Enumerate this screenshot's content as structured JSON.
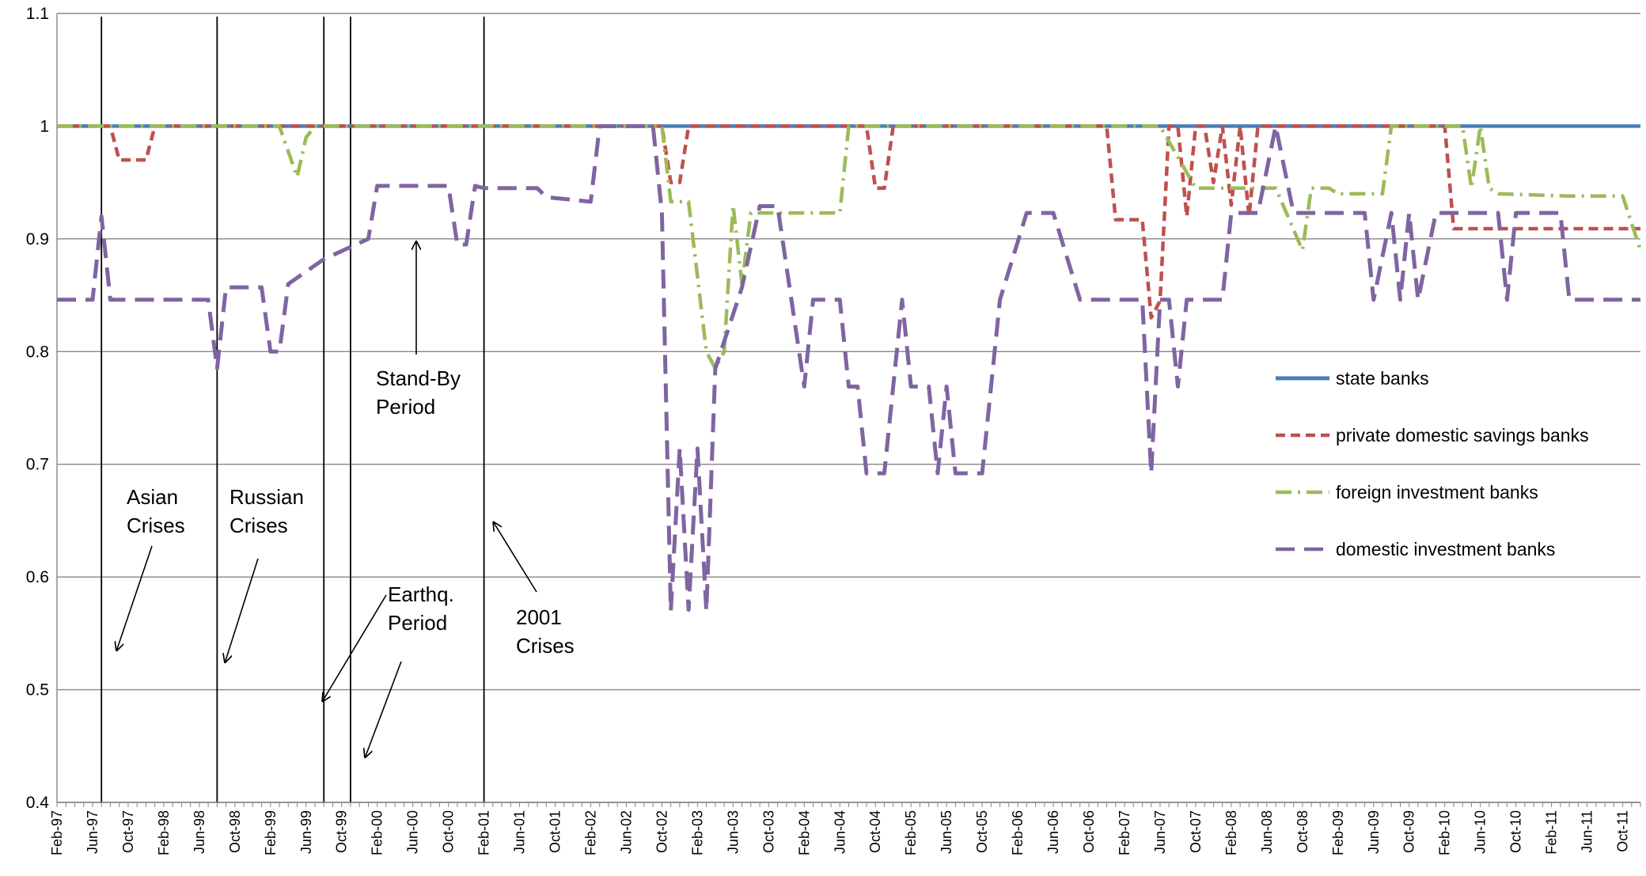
{
  "chart_data": {
    "type": "line",
    "title": "",
    "xlabel": "",
    "ylabel": "",
    "x_range": [
      "1997-02",
      "2011-12"
    ],
    "ylim": [
      0.4,
      1.1
    ],
    "y_ticks": [
      0.4,
      0.5,
      0.6,
      0.7,
      0.8,
      0.9,
      1,
      1.1
    ],
    "y_tick_labels": [
      "0.4",
      "0.5",
      "0.6",
      "0.7",
      "0.8",
      "0.9",
      "1",
      "1.1"
    ],
    "x_tick_labels": [
      "Feb-97",
      "Jun-97",
      "Oct-97",
      "Feb-98",
      "Jun-98",
      "Oct-98",
      "Feb-99",
      "Jun-99",
      "Oct-99",
      "Feb-00",
      "Jun-00",
      "Oct-00",
      "Feb-01",
      "Jun-01",
      "Oct-01",
      "Feb-02",
      "Jun-02",
      "Oct-02",
      "Feb-03",
      "Jun-03",
      "Oct-03",
      "Feb-04",
      "Jun-04",
      "Oct-04",
      "Feb-05",
      "Jun-05",
      "Oct-05",
      "Feb-06",
      "Jun-06",
      "Oct-06",
      "Feb-07",
      "Jun-07",
      "Oct-07",
      "Feb-08",
      "Jun-08",
      "Oct-08",
      "Feb-09",
      "Jun-09",
      "Oct-09",
      "Feb-10",
      "Jun-10",
      "Oct-10",
      "Feb-11",
      "Jun-11",
      "Oct-11"
    ],
    "grid": "horizontal",
    "legend_position": "right",
    "series": [
      {
        "name": "state banks",
        "color": "#4a7ebb",
        "style": "solid",
        "points": [
          [
            "1997-02",
            1.0
          ],
          [
            "2011-12",
            1.0
          ]
        ]
      },
      {
        "name": "private domestic savings banks",
        "color": "#c0504d",
        "style": "dash",
        "points": [
          [
            "1997-02",
            1.0
          ],
          [
            "1997-08",
            1.0
          ],
          [
            "1997-09",
            0.97
          ],
          [
            "1997-12",
            0.97
          ],
          [
            "1998-01",
            1.0
          ],
          [
            "2002-10",
            1.0
          ],
          [
            "2002-11",
            0.95
          ],
          [
            "2002-12",
            0.95
          ],
          [
            "2003-01",
            1.0
          ],
          [
            "2004-09",
            1.0
          ],
          [
            "2004-10",
            0.945
          ],
          [
            "2004-11",
            0.945
          ],
          [
            "2004-12",
            1.0
          ],
          [
            "2006-12",
            1.0
          ],
          [
            "2007-01",
            0.917
          ],
          [
            "2007-04",
            0.917
          ],
          [
            "2007-05",
            0.83
          ],
          [
            "2007-06",
            0.845
          ],
          [
            "2007-07",
            1.0
          ],
          [
            "2007-08",
            1.0
          ],
          [
            "2007-09",
            0.92
          ],
          [
            "2007-10",
            1.0
          ],
          [
            "2007-11",
            1.0
          ],
          [
            "2007-12",
            0.95
          ],
          [
            "2008-01",
            1.0
          ],
          [
            "2008-02",
            0.93
          ],
          [
            "2008-03",
            1.0
          ],
          [
            "2008-04",
            0.92
          ],
          [
            "2008-05",
            1.0
          ],
          [
            "2010-02",
            1.0
          ],
          [
            "2010-03",
            0.909
          ],
          [
            "2011-12",
            0.909
          ]
        ]
      },
      {
        "name": "foreign investment banks",
        "color": "#9bbb59",
        "style": "dash-dot",
        "points": [
          [
            "1997-02",
            1.0
          ],
          [
            "1999-03",
            1.0
          ],
          [
            "1999-05",
            0.955
          ],
          [
            "1999-06",
            0.99
          ],
          [
            "1999-07",
            1.0
          ],
          [
            "2002-10",
            1.0
          ],
          [
            "2002-11",
            0.933
          ],
          [
            "2003-01",
            0.933
          ],
          [
            "2003-03",
            0.8
          ],
          [
            "2003-04",
            0.785
          ],
          [
            "2003-05",
            0.8
          ],
          [
            "2003-06",
            0.93
          ],
          [
            "2003-07",
            0.86
          ],
          [
            "2003-08",
            0.923
          ],
          [
            "2003-10",
            0.923
          ],
          [
            "2004-01",
            0.923
          ],
          [
            "2004-06",
            0.923
          ],
          [
            "2004-07",
            1.0
          ],
          [
            "2007-05",
            1.0
          ],
          [
            "2007-06",
            1.0
          ],
          [
            "2007-10",
            0.945
          ],
          [
            "2008-01",
            0.945
          ],
          [
            "2008-04",
            0.945
          ],
          [
            "2008-07",
            0.945
          ],
          [
            "2008-10",
            0.89
          ],
          [
            "2008-11",
            0.945
          ],
          [
            "2009-01",
            0.945
          ],
          [
            "2009-02",
            0.94
          ],
          [
            "2009-07",
            0.94
          ],
          [
            "2009-08",
            1.0
          ],
          [
            "2010-04",
            1.0
          ],
          [
            "2010-05",
            0.945
          ],
          [
            "2010-06",
            1.0
          ],
          [
            "2010-07",
            0.945
          ],
          [
            "2010-08",
            0.94
          ],
          [
            "2011-04",
            0.938
          ],
          [
            "2011-10",
            0.938
          ],
          [
            "2011-12",
            0.89
          ]
        ]
      },
      {
        "name": "domestic investment banks",
        "color": "#8064a2",
        "style": "dash",
        "points": [
          [
            "1997-02",
            0.846
          ],
          [
            "1997-06",
            0.846
          ],
          [
            "1997-07",
            0.92
          ],
          [
            "1997-08",
            0.846
          ],
          [
            "1998-07",
            0.846
          ],
          [
            "1998-08",
            0.785
          ],
          [
            "1998-09",
            0.857
          ],
          [
            "1999-01",
            0.857
          ],
          [
            "1999-02",
            0.8
          ],
          [
            "1999-03",
            0.8
          ],
          [
            "1999-04",
            0.86
          ],
          [
            "1999-08",
            0.882
          ],
          [
            "2000-01",
            0.9
          ],
          [
            "2000-02",
            0.947
          ],
          [
            "2000-10",
            0.947
          ],
          [
            "2000-11",
            0.895
          ],
          [
            "2000-12",
            0.895
          ],
          [
            "2001-01",
            0.947
          ],
          [
            "2001-02",
            0.945
          ],
          [
            "2001-08",
            0.945
          ],
          [
            "2001-09",
            0.937
          ],
          [
            "2002-02",
            0.933
          ],
          [
            "2002-03",
            1.0
          ],
          [
            "2002-09",
            1.0
          ],
          [
            "2002-10",
            0.923
          ],
          [
            "2002-11",
            0.57
          ],
          [
            "2002-12",
            0.714
          ],
          [
            "2003-01",
            0.571
          ],
          [
            "2003-02",
            0.714
          ],
          [
            "2003-03",
            0.57
          ],
          [
            "2003-04",
            0.785
          ],
          [
            "2003-07",
            0.857
          ],
          [
            "2003-09",
            0.929
          ],
          [
            "2003-11",
            0.929
          ],
          [
            "2004-02",
            0.769
          ],
          [
            "2004-03",
            0.846
          ],
          [
            "2004-06",
            0.846
          ],
          [
            "2004-07",
            0.769
          ],
          [
            "2004-08",
            0.769
          ],
          [
            "2004-09",
            0.692
          ],
          [
            "2004-11",
            0.692
          ],
          [
            "2005-01",
            0.846
          ],
          [
            "2005-02",
            0.769
          ],
          [
            "2005-04",
            0.769
          ],
          [
            "2005-05",
            0.692
          ],
          [
            "2005-06",
            0.769
          ],
          [
            "2005-07",
            0.692
          ],
          [
            "2005-10",
            0.692
          ],
          [
            "2005-12",
            0.846
          ],
          [
            "2006-03",
            0.923
          ],
          [
            "2006-06",
            0.923
          ],
          [
            "2006-09",
            0.846
          ],
          [
            "2007-03",
            0.846
          ],
          [
            "2007-04",
            0.846
          ],
          [
            "2007-05",
            0.692
          ],
          [
            "2007-06",
            0.846
          ],
          [
            "2007-07",
            0.846
          ],
          [
            "2007-08",
            0.769
          ],
          [
            "2007-09",
            0.846
          ],
          [
            "2008-01",
            0.846
          ],
          [
            "2008-02",
            0.923
          ],
          [
            "2008-05",
            0.923
          ],
          [
            "2008-07",
            1.0
          ],
          [
            "2008-09",
            0.923
          ],
          [
            "2009-05",
            0.923
          ],
          [
            "2009-06",
            0.846
          ],
          [
            "2009-08",
            0.923
          ],
          [
            "2009-09",
            0.846
          ],
          [
            "2009-10",
            0.923
          ],
          [
            "2009-11",
            0.846
          ],
          [
            "2010-01",
            0.923
          ],
          [
            "2010-06",
            0.923
          ],
          [
            "2010-08",
            0.923
          ],
          [
            "2010-09",
            0.846
          ],
          [
            "2010-10",
            0.923
          ],
          [
            "2011-03",
            0.923
          ],
          [
            "2011-04",
            0.846
          ],
          [
            "2011-12",
            0.846
          ]
        ]
      }
    ],
    "event_lines": [
      "1997-07",
      "1998-08",
      "1999-08",
      "1999-11",
      "2001-02"
    ],
    "annotations": [
      {
        "id": "asian",
        "lines": [
          "Asian",
          "Crises"
        ]
      },
      {
        "id": "russian",
        "lines": [
          "Russian",
          "Crises"
        ]
      },
      {
        "id": "standby",
        "lines": [
          "Stand-By",
          "Period"
        ]
      },
      {
        "id": "earthq",
        "lines": [
          "Earthq.",
          "Period"
        ]
      },
      {
        "id": "c2001",
        "lines": [
          "2001",
          "Crises"
        ]
      }
    ]
  }
}
